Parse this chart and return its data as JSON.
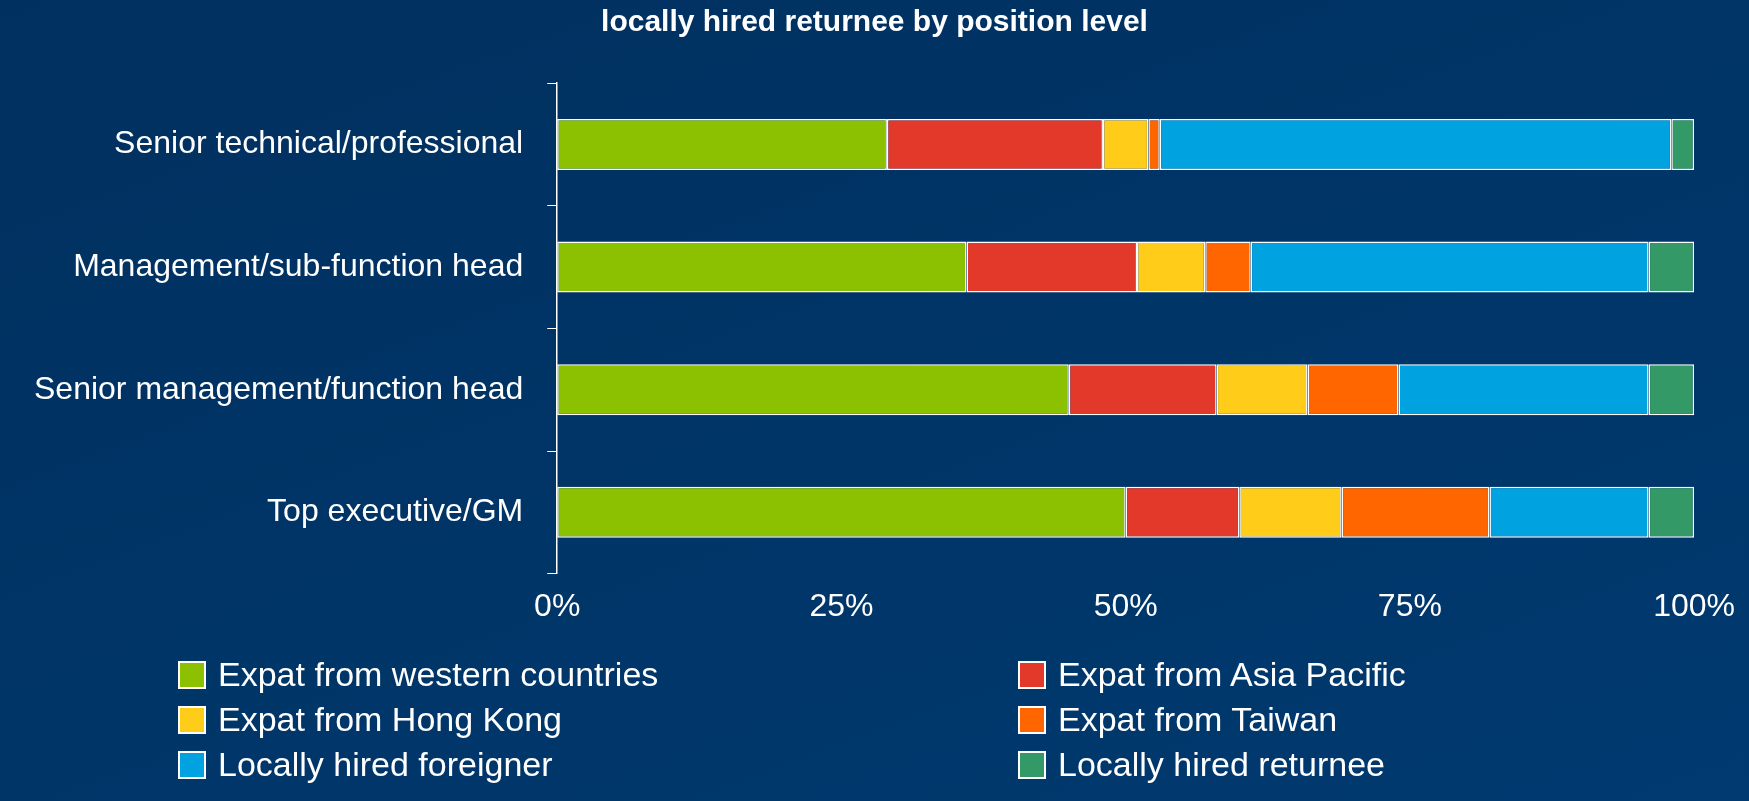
{
  "chart_data": {
    "type": "bar",
    "orientation": "horizontal",
    "stacked": true,
    "title": "locally hired returnee by position level",
    "categories": [
      "Senior technical/professional",
      "Management/sub-function head",
      "Senior management/function head",
      "Top executive/GM"
    ],
    "series": [
      {
        "name": "Expat from western countries",
        "color": "#8bc100",
        "values": [
          29,
          36,
          45,
          50
        ]
      },
      {
        "name": "Expat from Asia Pacific",
        "color": "#e2392a",
        "values": [
          19,
          15,
          13,
          10
        ]
      },
      {
        "name": "Expat from Hong Kong",
        "color": "#ffcc1a",
        "values": [
          4,
          6,
          8,
          9
        ]
      },
      {
        "name": "Expat from Taiwan",
        "color": "#ff6600",
        "values": [
          1,
          4,
          8,
          13
        ]
      },
      {
        "name": "Locally hired foreigner",
        "color": "#00a3e0",
        "values": [
          45,
          35,
          22,
          14
        ]
      },
      {
        "name": "Locally hired returnee",
        "color": "#339966",
        "values": [
          2,
          4,
          4,
          4
        ]
      }
    ],
    "xlim": [
      0,
      100
    ],
    "xticks": [
      {
        "value": 0,
        "label": "0%"
      },
      {
        "value": 25,
        "label": "25%"
      },
      {
        "value": 50,
        "label": "50%"
      },
      {
        "value": 75,
        "label": "75%"
      },
      {
        "value": 100,
        "label": "100%"
      }
    ],
    "grid": false,
    "legend": "bottom"
  }
}
